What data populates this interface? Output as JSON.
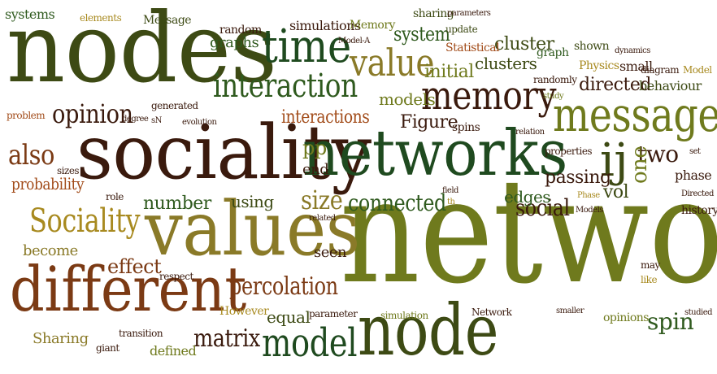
{
  "palette": {
    "olive": "#6f7a1d",
    "dark_olive": "#3d4a14",
    "brown": "#7b3a14",
    "dark_brown": "#3a1a0d",
    "dark_green": "#1f4a1f",
    "forest": "#2f5a1e",
    "tan": "#8a7a28",
    "rust": "#a24c1a",
    "gold": "#a88a20"
  },
  "words": [
    "network",
    "nodes",
    "sociality",
    "networks",
    "values",
    "different",
    "node",
    "message",
    "time",
    "memory",
    "value",
    "interaction",
    "model",
    "Sociality",
    "opinion",
    "ij",
    "percolation",
    "connected",
    "size",
    "matrix",
    "also",
    "system",
    "two",
    "social",
    "probability",
    "initial",
    "clusters",
    "interactions",
    "passing",
    "one",
    "effect",
    "spin",
    "directed",
    "models",
    "Figure",
    "number",
    "edges",
    "using",
    "end",
    "vol",
    "graphs",
    "cluster",
    "become",
    "seen",
    "equal",
    "Sharing",
    "However",
    "probability",
    "random",
    "simulations",
    "Memory",
    "sharing",
    "parameters",
    "systems",
    "elements",
    "Message",
    "update",
    "Statistical",
    "Model-A",
    "graph",
    "shown",
    "dynamics",
    "Model",
    "Physics",
    "small",
    "diagram",
    "randomly",
    "behaviour",
    "study",
    "problem",
    "degree",
    "sN",
    "generated",
    "evolution",
    "spins",
    "relation",
    "properties",
    "set",
    "pp",
    "phase",
    "field",
    "th",
    "Phase",
    "Models",
    "Directed",
    "history",
    "role",
    "sizes",
    "respect",
    "related",
    "parameter",
    "simulation",
    "Network",
    "smaller",
    "opinions",
    "studied",
    "may",
    "like",
    "transition",
    "giant",
    "defined"
  ]
}
